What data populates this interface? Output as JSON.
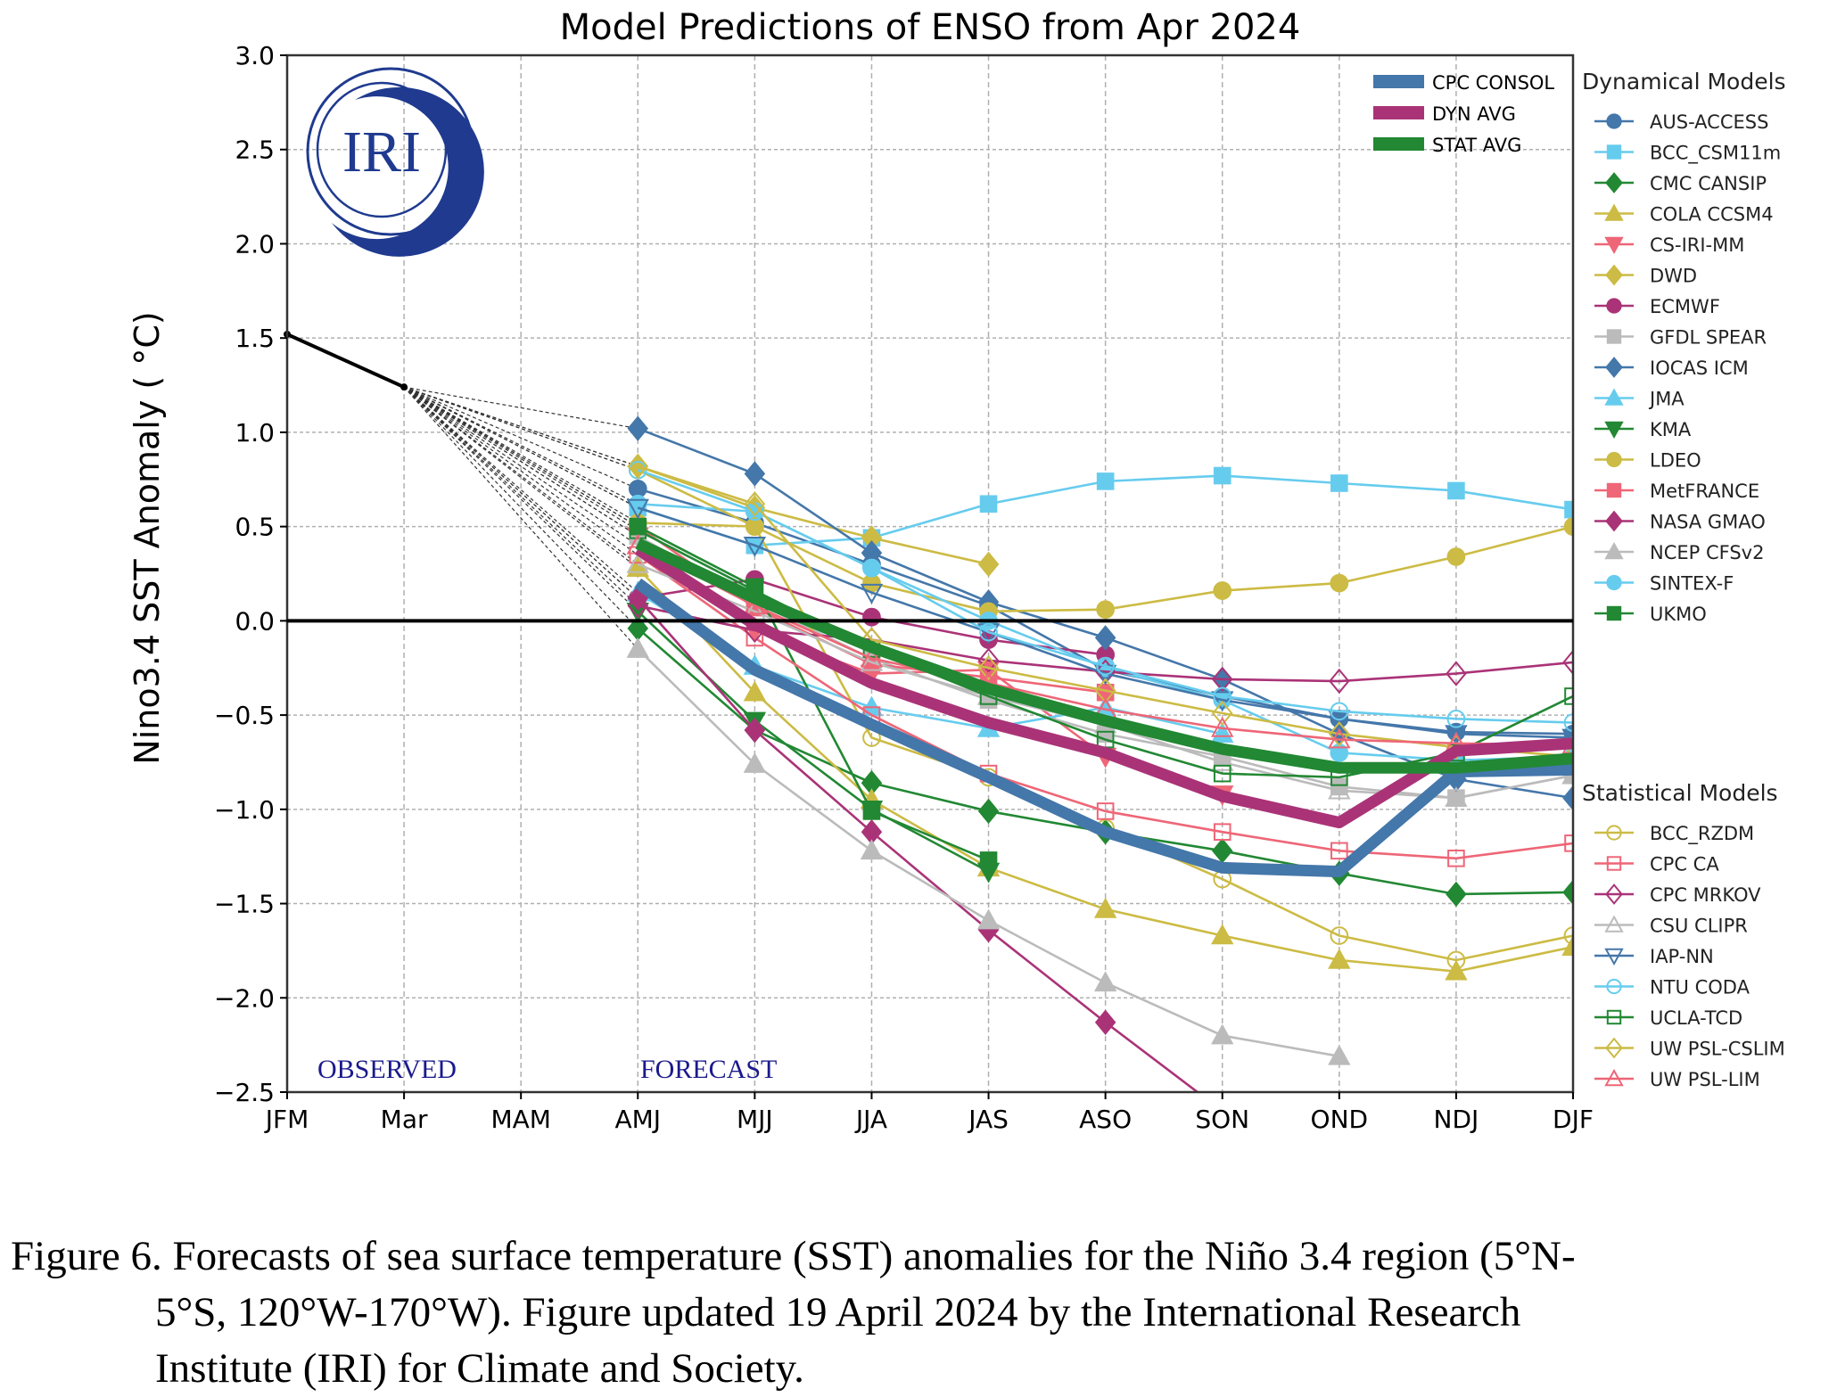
{
  "chart_data": {
    "type": "line",
    "title": "Model Predictions of ENSO from Apr 2024",
    "xlabel": "",
    "ylabel": "Nino3.4 SST Anomaly ( °C)",
    "ylim": [
      -2.5,
      3.0
    ],
    "yticks": [
      "3.0",
      "2.5",
      "2.0",
      "1.5",
      "1.0",
      "0.5",
      "0.0",
      "−0.5",
      "−1.0",
      "−1.5",
      "−2.0",
      "−2.5"
    ],
    "ytick_values": [
      3.0,
      2.5,
      2.0,
      1.5,
      1.0,
      0.5,
      0.0,
      -0.5,
      -1.0,
      -1.5,
      -2.0,
      -2.5
    ],
    "categories": [
      "JFM",
      "Mar",
      "MAM",
      "AMJ",
      "MJJ",
      "JJA",
      "JAS",
      "ASO",
      "SON",
      "OND",
      "NDJ",
      "DJF"
    ],
    "grid": true,
    "annotations": {
      "observed": "OBSERVED",
      "forecast": "FORECAST",
      "logo": "IRI"
    },
    "observed": {
      "x": [
        "JFM",
        "Mar"
      ],
      "values": [
        1.52,
        1.24
      ],
      "color": "#000000"
    },
    "forecast_start_index": 3,
    "averages": [
      {
        "name": "CPC CONSOL",
        "color": "#4477aa",
        "values": [
          0.2,
          -0.26,
          -0.55,
          -0.83,
          -1.12,
          -1.31,
          -1.33,
          -0.8,
          -0.79
        ]
      },
      {
        "name": "DYN AVG",
        "color": "#aa3377",
        "values": [
          0.38,
          -0.02,
          -0.33,
          -0.54,
          -0.7,
          -0.93,
          -1.07,
          -0.69,
          -0.65
        ]
      },
      {
        "name": "STAT AVG",
        "color": "#228833",
        "values": [
          0.41,
          0.12,
          -0.14,
          -0.36,
          -0.53,
          -0.68,
          -0.78,
          -0.78,
          -0.73
        ]
      }
    ],
    "legend_dynamical_title": "Dynamical Models",
    "legend_statistical_title": "Statistical Models",
    "legend_placement": "right",
    "dynamical": [
      {
        "name": "AUS-ACCESS",
        "color": "#4477aa",
        "marker": "circle",
        "filled": true,
        "values": [
          0.7,
          0.52,
          0.3,
          0.08,
          -0.26,
          -0.4,
          -0.52,
          -0.59,
          -0.6
        ]
      },
      {
        "name": "BCC_CSM11m",
        "color": "#66ccee",
        "marker": "square",
        "filled": true,
        "values": [
          0.6,
          0.4,
          0.44,
          0.62,
          0.74,
          0.77,
          0.73,
          0.69,
          0.59
        ]
      },
      {
        "name": "CMC CANSIP",
        "color": "#228833",
        "marker": "diamond",
        "filled": true,
        "values": [
          -0.04,
          -0.58,
          -0.86,
          -1.01,
          -1.12,
          -1.22,
          -1.34,
          -1.45,
          -1.44
        ]
      },
      {
        "name": "COLA CCSM4",
        "color": "#ccbb44",
        "marker": "triangle-up",
        "filled": true,
        "values": [
          0.28,
          -0.38,
          -0.95,
          -1.31,
          -1.53,
          -1.67,
          -1.8,
          -1.86,
          -1.73
        ]
      },
      {
        "name": "CS-IRI-MM",
        "color": "#ee6677",
        "marker": "triangle-down",
        "filled": true,
        "values": [
          0.45,
          -0.05,
          -0.28,
          -0.26,
          -0.72,
          -0.92,
          null,
          null,
          null
        ]
      },
      {
        "name": "DWD",
        "color": "#ccbb44",
        "marker": "diamond",
        "filled": true,
        "values": [
          0.82,
          0.6,
          0.44,
          0.3,
          null,
          null,
          null,
          null,
          null
        ]
      },
      {
        "name": "ECMWF",
        "color": "#aa3377",
        "marker": "circle",
        "filled": true,
        "values": [
          0.12,
          0.22,
          0.02,
          -0.1,
          -0.18,
          null,
          null,
          null,
          null
        ]
      },
      {
        "name": "GFDL SPEAR",
        "color": "#bbbbbb",
        "marker": "square",
        "filled": true,
        "values": [
          0.45,
          0.1,
          -0.2,
          -0.42,
          -0.6,
          -0.72,
          -0.88,
          -0.94,
          -0.82
        ]
      },
      {
        "name": "IOCAS ICM",
        "color": "#4477aa",
        "marker": "diamond",
        "filled": true,
        "values": [
          1.02,
          0.78,
          0.36,
          0.1,
          -0.09,
          -0.31,
          -0.6,
          -0.84,
          -0.94
        ]
      },
      {
        "name": "JMA",
        "color": "#66ccee",
        "marker": "triangle-up",
        "filled": true,
        "values": [
          0.15,
          -0.24,
          -0.46,
          -0.57,
          -0.46,
          -0.6,
          null,
          null,
          null
        ]
      },
      {
        "name": "KMA",
        "color": "#228833",
        "marker": "triangle-down",
        "filled": true,
        "values": [
          0.05,
          -0.53,
          -1.0,
          -1.33,
          null,
          null,
          null,
          null,
          null
        ]
      },
      {
        "name": "LDEO",
        "color": "#ccbb44",
        "marker": "circle",
        "filled": true,
        "values": [
          0.52,
          0.5,
          0.2,
          0.05,
          0.06,
          0.16,
          0.2,
          0.34,
          0.5
        ]
      },
      {
        "name": "MetFRANCE",
        "color": "#ee6677",
        "marker": "square",
        "filled": true,
        "values": [
          0.5,
          0.07,
          -0.23,
          -0.3,
          -0.38,
          null,
          null,
          null,
          null
        ]
      },
      {
        "name": "NASA GMAO",
        "color": "#aa3377",
        "marker": "diamond",
        "filled": true,
        "values": [
          0.12,
          -0.58,
          -1.12,
          -1.64,
          -2.13,
          -2.6,
          null,
          null,
          null
        ]
      },
      {
        "name": "NCEP CFSv2",
        "color": "#bbbbbb",
        "marker": "triangle-up",
        "filled": true,
        "values": [
          -0.15,
          -0.76,
          -1.22,
          -1.59,
          -1.92,
          -2.2,
          -2.31,
          null,
          null
        ]
      },
      {
        "name": "SINTEX-F",
        "color": "#66ccee",
        "marker": "circle",
        "filled": true,
        "values": [
          0.62,
          0.58,
          0.28,
          0.0,
          -0.25,
          -0.42,
          -0.7,
          -0.74,
          -0.72
        ]
      },
      {
        "name": "UKMO",
        "color": "#228833",
        "marker": "square",
        "filled": true,
        "values": [
          0.5,
          0.18,
          -1.01,
          -1.27,
          null,
          null,
          null,
          null,
          null
        ]
      }
    ],
    "statistical": [
      {
        "name": "BCC_RZDM",
        "color": "#ccbb44",
        "marker": "circle",
        "filled": false,
        "values": [
          0.8,
          0.5,
          -0.62,
          -0.83,
          -1.1,
          -1.37,
          -1.67,
          -1.8,
          -1.67
        ]
      },
      {
        "name": "CPC CA",
        "color": "#ee6677",
        "marker": "square",
        "filled": false,
        "values": [
          0.35,
          -0.09,
          -0.5,
          -0.81,
          -1.01,
          -1.12,
          -1.22,
          -1.26,
          -1.18
        ]
      },
      {
        "name": "CPC MRKOV",
        "color": "#aa3377",
        "marker": "diamond",
        "filled": false,
        "values": [
          0.08,
          -0.05,
          -0.1,
          -0.21,
          -0.27,
          -0.31,
          -0.32,
          -0.28,
          -0.22
        ]
      },
      {
        "name": "CSU CLIPR",
        "color": "#bbbbbb",
        "marker": "triangle-up",
        "filled": false,
        "values": [
          0.3,
          0.05,
          -0.22,
          -0.4,
          -0.55,
          -0.75,
          -0.9,
          -0.94,
          -0.82
        ]
      },
      {
        "name": "IAP-NN",
        "color": "#4477aa",
        "marker": "triangle-down",
        "filled": false,
        "values": [
          0.6,
          0.4,
          0.15,
          -0.06,
          -0.28,
          -0.42,
          -0.52,
          -0.6,
          -0.62
        ]
      },
      {
        "name": "NTU CODA",
        "color": "#66ccee",
        "marker": "circle",
        "filled": false,
        "values": [
          0.8,
          0.58,
          0.28,
          -0.06,
          -0.24,
          -0.4,
          -0.48,
          -0.52,
          -0.54
        ]
      },
      {
        "name": "UCLA-TCD",
        "color": "#228833",
        "marker": "square",
        "filled": false,
        "values": [
          0.48,
          0.16,
          -0.15,
          -0.4,
          -0.63,
          -0.81,
          -0.83,
          -0.7,
          -0.4
        ]
      },
      {
        "name": "UW PSL-CSLIM",
        "color": "#ccbb44",
        "marker": "diamond",
        "filled": false,
        "values": [
          0.82,
          0.62,
          -0.1,
          -0.25,
          -0.37,
          -0.49,
          -0.6,
          -0.67,
          -0.72
        ]
      },
      {
        "name": "UW PSL-LIM",
        "color": "#ee6677",
        "marker": "triangle-up",
        "filled": false,
        "values": [
          0.4,
          0.08,
          -0.2,
          -0.33,
          -0.47,
          -0.57,
          -0.63,
          -0.65,
          -0.66
        ]
      }
    ]
  },
  "caption": {
    "line1": "Figure  6. Forecasts of sea surface  temperature  (SST) anomalies  for the Niño 3.4 region  (5°N-",
    "line2": "5°S, 120°W-170°W). Figure  updated 19 April 2024 by the International  Research",
    "line3": "Institute  (IRI) for Climate  and Society."
  }
}
